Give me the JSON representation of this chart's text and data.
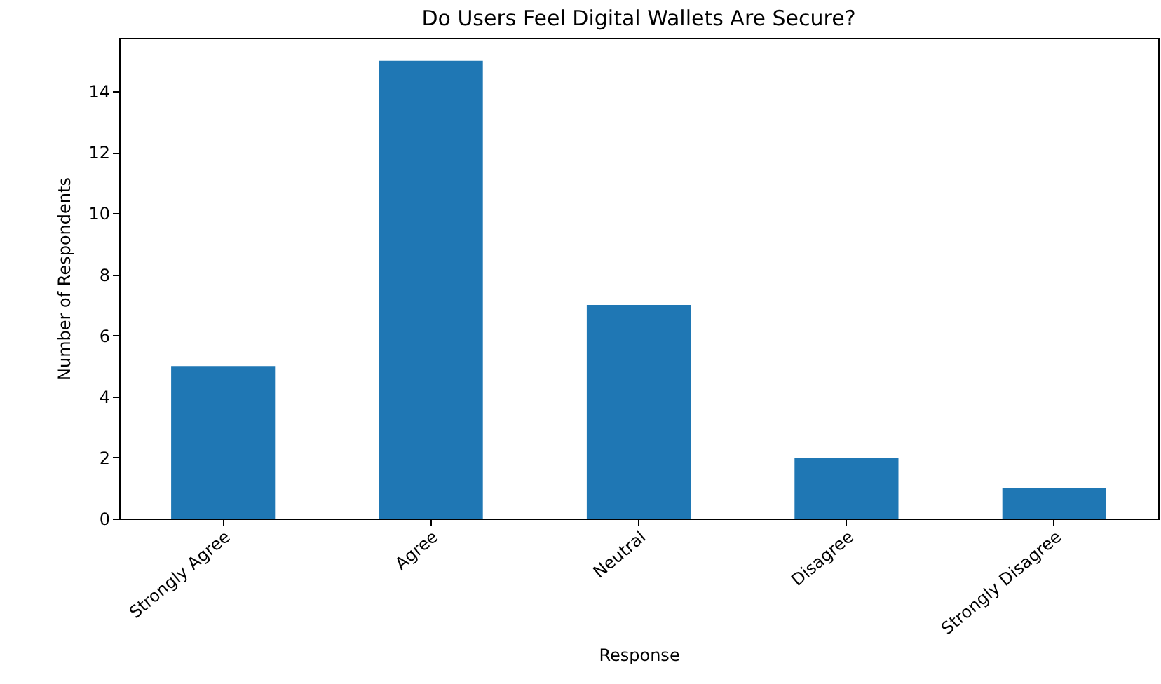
{
  "chart_data": {
    "type": "bar",
    "title": "Do Users Feel Digital Wallets Are Secure?",
    "xlabel": "Response",
    "ylabel": "Number of Respondents",
    "categories": [
      "Strongly Agree",
      "Agree",
      "Neutral",
      "Disagree",
      "Strongly Disagree"
    ],
    "values": [
      5,
      15,
      7,
      2,
      1
    ],
    "color": "#1f77b4",
    "ylim": [
      0,
      15.75
    ],
    "yticks": [
      0,
      2,
      4,
      6,
      8,
      10,
      12,
      14
    ],
    "grid": false
  }
}
